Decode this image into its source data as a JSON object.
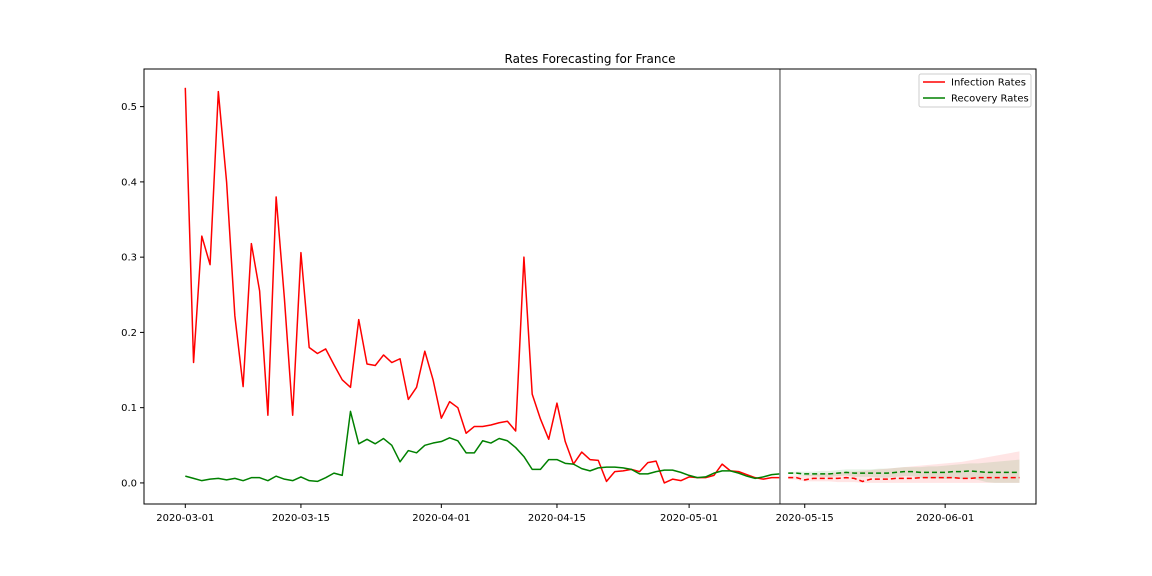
{
  "chart_data": {
    "type": "line",
    "title": "Rates Forecasting for France",
    "xlabel": "",
    "ylabel": "",
    "x_start": "2020-03-01",
    "x_range": [
      "2020-02-25",
      "2020-06-12"
    ],
    "ylim": [
      -0.028,
      0.55
    ],
    "x_ticks": [
      "2020-03-01",
      "2020-03-15",
      "2020-04-01",
      "2020-04-15",
      "2020-05-01",
      "2020-05-15",
      "2020-06-01"
    ],
    "y_ticks": [
      0.0,
      0.1,
      0.2,
      0.3,
      0.4,
      0.5
    ],
    "y_tick_labels": [
      "0.0",
      "0.1",
      "0.2",
      "0.3",
      "0.4",
      "0.5"
    ],
    "forecast_split": "2020-05-12",
    "grid": false,
    "legend_position": "top-right",
    "series": [
      {
        "name": "Infection Rates",
        "color": "#ff0000",
        "values": [
          0.525,
          0.16,
          0.328,
          0.29,
          0.52,
          0.4,
          0.222,
          0.128,
          0.318,
          0.255,
          0.09,
          0.38,
          0.245,
          0.09,
          0.306,
          0.18,
          0.172,
          0.178,
          0.157,
          0.137,
          0.127,
          0.217,
          0.158,
          0.156,
          0.17,
          0.16,
          0.165,
          0.111,
          0.127,
          0.175,
          0.137,
          0.086,
          0.108,
          0.1,
          0.066,
          0.075,
          0.075,
          0.077,
          0.08,
          0.082,
          0.069,
          0.3,
          0.118,
          0.085,
          0.058,
          0.106,
          0.055,
          0.025,
          0.041,
          0.031,
          0.03,
          0.002,
          0.015,
          0.016,
          0.018,
          0.015,
          0.027,
          0.029,
          0.0,
          0.005,
          0.003,
          0.008,
          0.007,
          0.007,
          0.01,
          0.025,
          0.016,
          0.015,
          0.011,
          0.007,
          0.005,
          0.007,
          0.007
        ],
        "forecast": [
          0.007,
          0.007,
          0.004,
          0.006,
          0.006,
          0.006,
          0.006,
          0.007,
          0.006,
          0.002,
          0.005,
          0.005,
          0.005,
          0.006,
          0.006,
          0.006,
          0.007,
          0.007,
          0.007,
          0.007,
          0.007,
          0.006,
          0.006,
          0.007,
          0.007,
          0.007,
          0.007,
          0.007,
          0.007
        ],
        "forecast_upper": [
          0.009,
          0.01,
          0.01,
          0.011,
          0.012,
          0.013,
          0.014,
          0.015,
          0.015,
          0.016,
          0.017,
          0.018,
          0.019,
          0.02,
          0.021,
          0.022,
          0.023,
          0.024,
          0.025,
          0.026,
          0.027,
          0.028,
          0.03,
          0.032,
          0.034,
          0.036,
          0.038,
          0.04,
          0.042
        ],
        "forecast_lower": [
          0.005,
          0.004,
          0.002,
          0.002,
          0.002,
          0.002,
          0.001,
          0.001,
          0.001,
          0.0,
          0.0,
          0.0,
          0.0,
          0.0,
          0.0,
          0.0,
          0.0,
          0.0,
          0.0,
          0.0,
          0.0,
          0.0,
          0.0,
          0.0,
          0.0,
          0.0,
          0.0,
          0.0,
          0.0
        ]
      },
      {
        "name": "Recovery Rates",
        "color": "#008000",
        "values": [
          0.009,
          0.006,
          0.003,
          0.005,
          0.006,
          0.004,
          0.006,
          0.003,
          0.007,
          0.007,
          0.003,
          0.009,
          0.005,
          0.003,
          0.008,
          0.003,
          0.002,
          0.007,
          0.013,
          0.01,
          0.095,
          0.052,
          0.058,
          0.052,
          0.059,
          0.05,
          0.028,
          0.043,
          0.04,
          0.05,
          0.053,
          0.055,
          0.06,
          0.056,
          0.04,
          0.04,
          0.056,
          0.053,
          0.059,
          0.056,
          0.047,
          0.035,
          0.018,
          0.018,
          0.031,
          0.031,
          0.026,
          0.025,
          0.019,
          0.016,
          0.02,
          0.021,
          0.021,
          0.02,
          0.018,
          0.012,
          0.012,
          0.015,
          0.017,
          0.017,
          0.014,
          0.01,
          0.007,
          0.008,
          0.013,
          0.016,
          0.016,
          0.013,
          0.009,
          0.006,
          0.008,
          0.011,
          0.012
        ],
        "forecast": [
          0.013,
          0.013,
          0.012,
          0.012,
          0.012,
          0.012,
          0.013,
          0.014,
          0.013,
          0.013,
          0.013,
          0.013,
          0.013,
          0.014,
          0.015,
          0.015,
          0.014,
          0.014,
          0.014,
          0.014,
          0.015,
          0.015,
          0.016,
          0.015,
          0.014,
          0.014,
          0.014,
          0.014,
          0.014
        ],
        "forecast_upper": [
          0.014,
          0.015,
          0.015,
          0.015,
          0.016,
          0.016,
          0.017,
          0.018,
          0.018,
          0.018,
          0.018,
          0.019,
          0.019,
          0.02,
          0.021,
          0.021,
          0.021,
          0.022,
          0.022,
          0.023,
          0.024,
          0.025,
          0.026,
          0.026,
          0.027,
          0.028,
          0.029,
          0.03,
          0.031
        ],
        "forecast_lower": [
          0.012,
          0.011,
          0.009,
          0.009,
          0.008,
          0.008,
          0.009,
          0.01,
          0.008,
          0.008,
          0.008,
          0.007,
          0.007,
          0.008,
          0.009,
          0.009,
          0.007,
          0.006,
          0.006,
          0.005,
          0.006,
          0.005,
          0.006,
          0.004,
          0.001,
          0.0,
          0.0,
          0.0,
          0.0
        ]
      }
    ]
  }
}
